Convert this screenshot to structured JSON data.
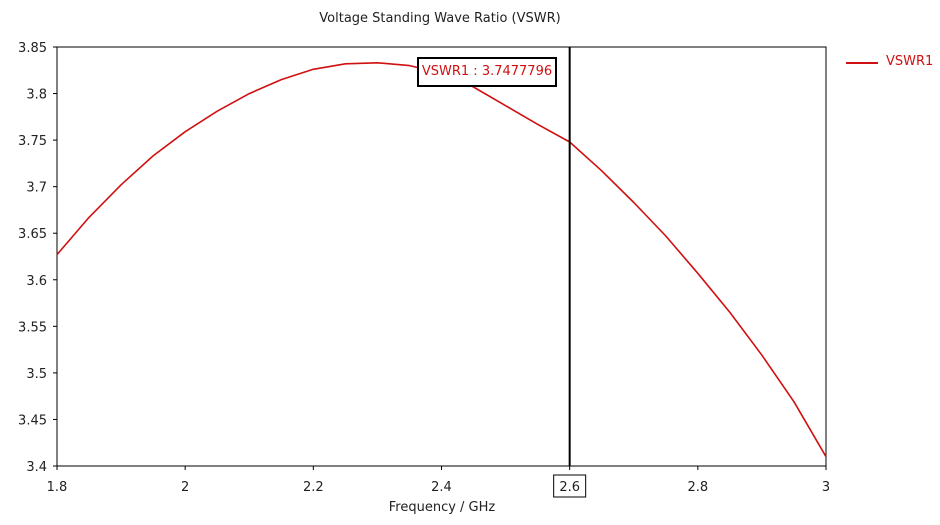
{
  "chart_data": {
    "type": "line",
    "title": "Voltage Standing Wave Ratio (VSWR)",
    "xlabel": "Frequency / GHz",
    "ylabel": "",
    "xlim": [
      1.8,
      3.0
    ],
    "ylim": [
      3.4,
      3.85
    ],
    "x_ticks": [
      "1.8",
      "2",
      "2.2",
      "2.4",
      "2.6",
      "2.8",
      "3"
    ],
    "y_ticks": [
      "3.85",
      "3.8",
      "3.75",
      "3.7",
      "3.65",
      "3.6",
      "3.55",
      "3.5",
      "3.45",
      "3.4"
    ],
    "grid": true,
    "legend_position": "right",
    "series": [
      {
        "name": "VSWR1",
        "color": "#d01010",
        "x": [
          1.8,
          1.85,
          1.9,
          1.95,
          2.0,
          2.05,
          2.1,
          2.15,
          2.2,
          2.25,
          2.3,
          2.35,
          2.4,
          2.45,
          2.5,
          2.55,
          2.6,
          2.65,
          2.7,
          2.75,
          2.8,
          2.85,
          2.9,
          2.95,
          3.0
        ],
        "y": [
          3.627,
          3.667,
          3.702,
          3.733,
          3.759,
          3.781,
          3.8,
          3.815,
          3.826,
          3.832,
          3.833,
          3.83,
          3.822,
          3.807,
          3.787,
          3.767,
          3.748,
          3.717,
          3.683,
          3.647,
          3.607,
          3.565,
          3.519,
          3.469,
          3.41
        ]
      }
    ],
    "marker": {
      "x": 2.6,
      "x_label": "2.6",
      "label": "VSWR1 : 3.7477796"
    }
  }
}
